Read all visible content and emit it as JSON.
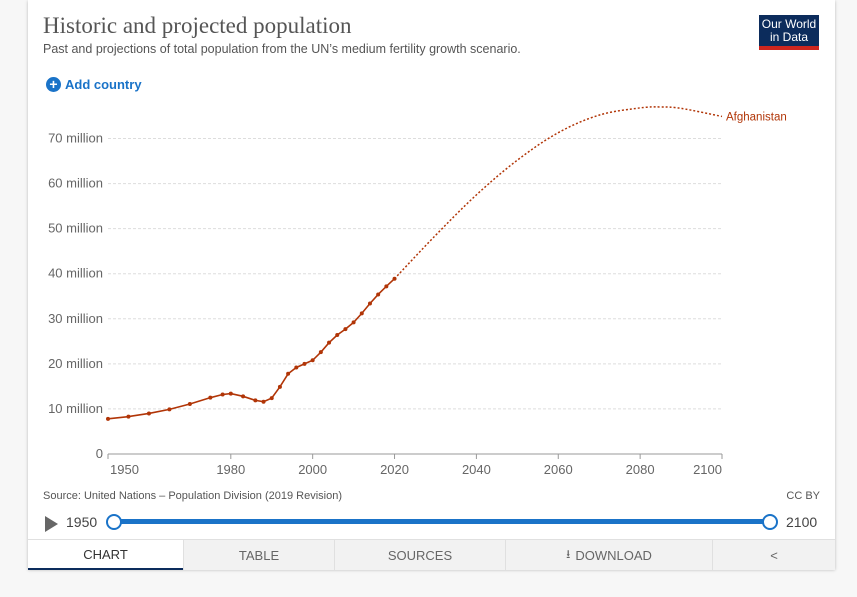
{
  "header": {
    "title": "Historic and projected population",
    "subtitle": "Past and projections of total population from the UN’s medium fertility growth scenario.",
    "logo_line1": "Our World",
    "logo_line2": "in Data",
    "add_country_label": "Add country"
  },
  "colors": {
    "series": "#b13507",
    "accent": "#1a73c8",
    "logo_bg": "#0c2c5c",
    "logo_bar": "#ce261e"
  },
  "chart_data": {
    "type": "line",
    "title": "Historic and projected population",
    "xlabel": "",
    "ylabel": "",
    "xlim": [
      1950,
      2100
    ],
    "ylim": [
      0,
      75000000
    ],
    "x_ticks": [
      "1950",
      "1980",
      "2000",
      "2020",
      "2040",
      "2060",
      "2080",
      "2100"
    ],
    "y_ticks": [
      "0",
      "10 million",
      "20 million",
      "30 million",
      "40 million",
      "50 million",
      "60 million",
      "70 million"
    ],
    "grid": true,
    "legend": "end-of-line label",
    "series": [
      {
        "name": "Afghanistan",
        "style": "solid with dot markers (historic)",
        "x": [
          1950,
          1955,
          1960,
          1965,
          1970,
          1975,
          1978,
          1980,
          1983,
          1986,
          1988,
          1990,
          1992,
          1994,
          1996,
          1998,
          2000,
          2002,
          2004,
          2006,
          2008,
          2010,
          2012,
          2014,
          2016,
          2018,
          2020
        ],
        "y": [
          7800000,
          8300000,
          9000000,
          9900000,
          11100000,
          12500000,
          13200000,
          13400000,
          12800000,
          11900000,
          11600000,
          12400000,
          14900000,
          17800000,
          19200000,
          20000000,
          20800000,
          22600000,
          24700000,
          26400000,
          27700000,
          29200000,
          31200000,
          33400000,
          35400000,
          37200000,
          38900000
        ]
      },
      {
        "name": "Afghanistan (projection)",
        "style": "dotted",
        "x": [
          2020,
          2030,
          2040,
          2050,
          2060,
          2070,
          2080,
          2085,
          2090,
          2100
        ],
        "y": [
          38900000,
          48500000,
          57500000,
          65200000,
          71300000,
          75200000,
          76800000,
          77000000,
          76700000,
          74900000
        ]
      }
    ],
    "label": "Afghanistan"
  },
  "footer": {
    "source": "Source: United Nations – Population Division (2019 Revision)",
    "license": "CC BY"
  },
  "timeline": {
    "start": "1950",
    "end": "2100",
    "start_fraction": 0,
    "end_fraction": 1
  },
  "tabs": {
    "chart": "CHART",
    "table": "TABLE",
    "sources": "SOURCES",
    "download": "DOWNLOAD"
  }
}
